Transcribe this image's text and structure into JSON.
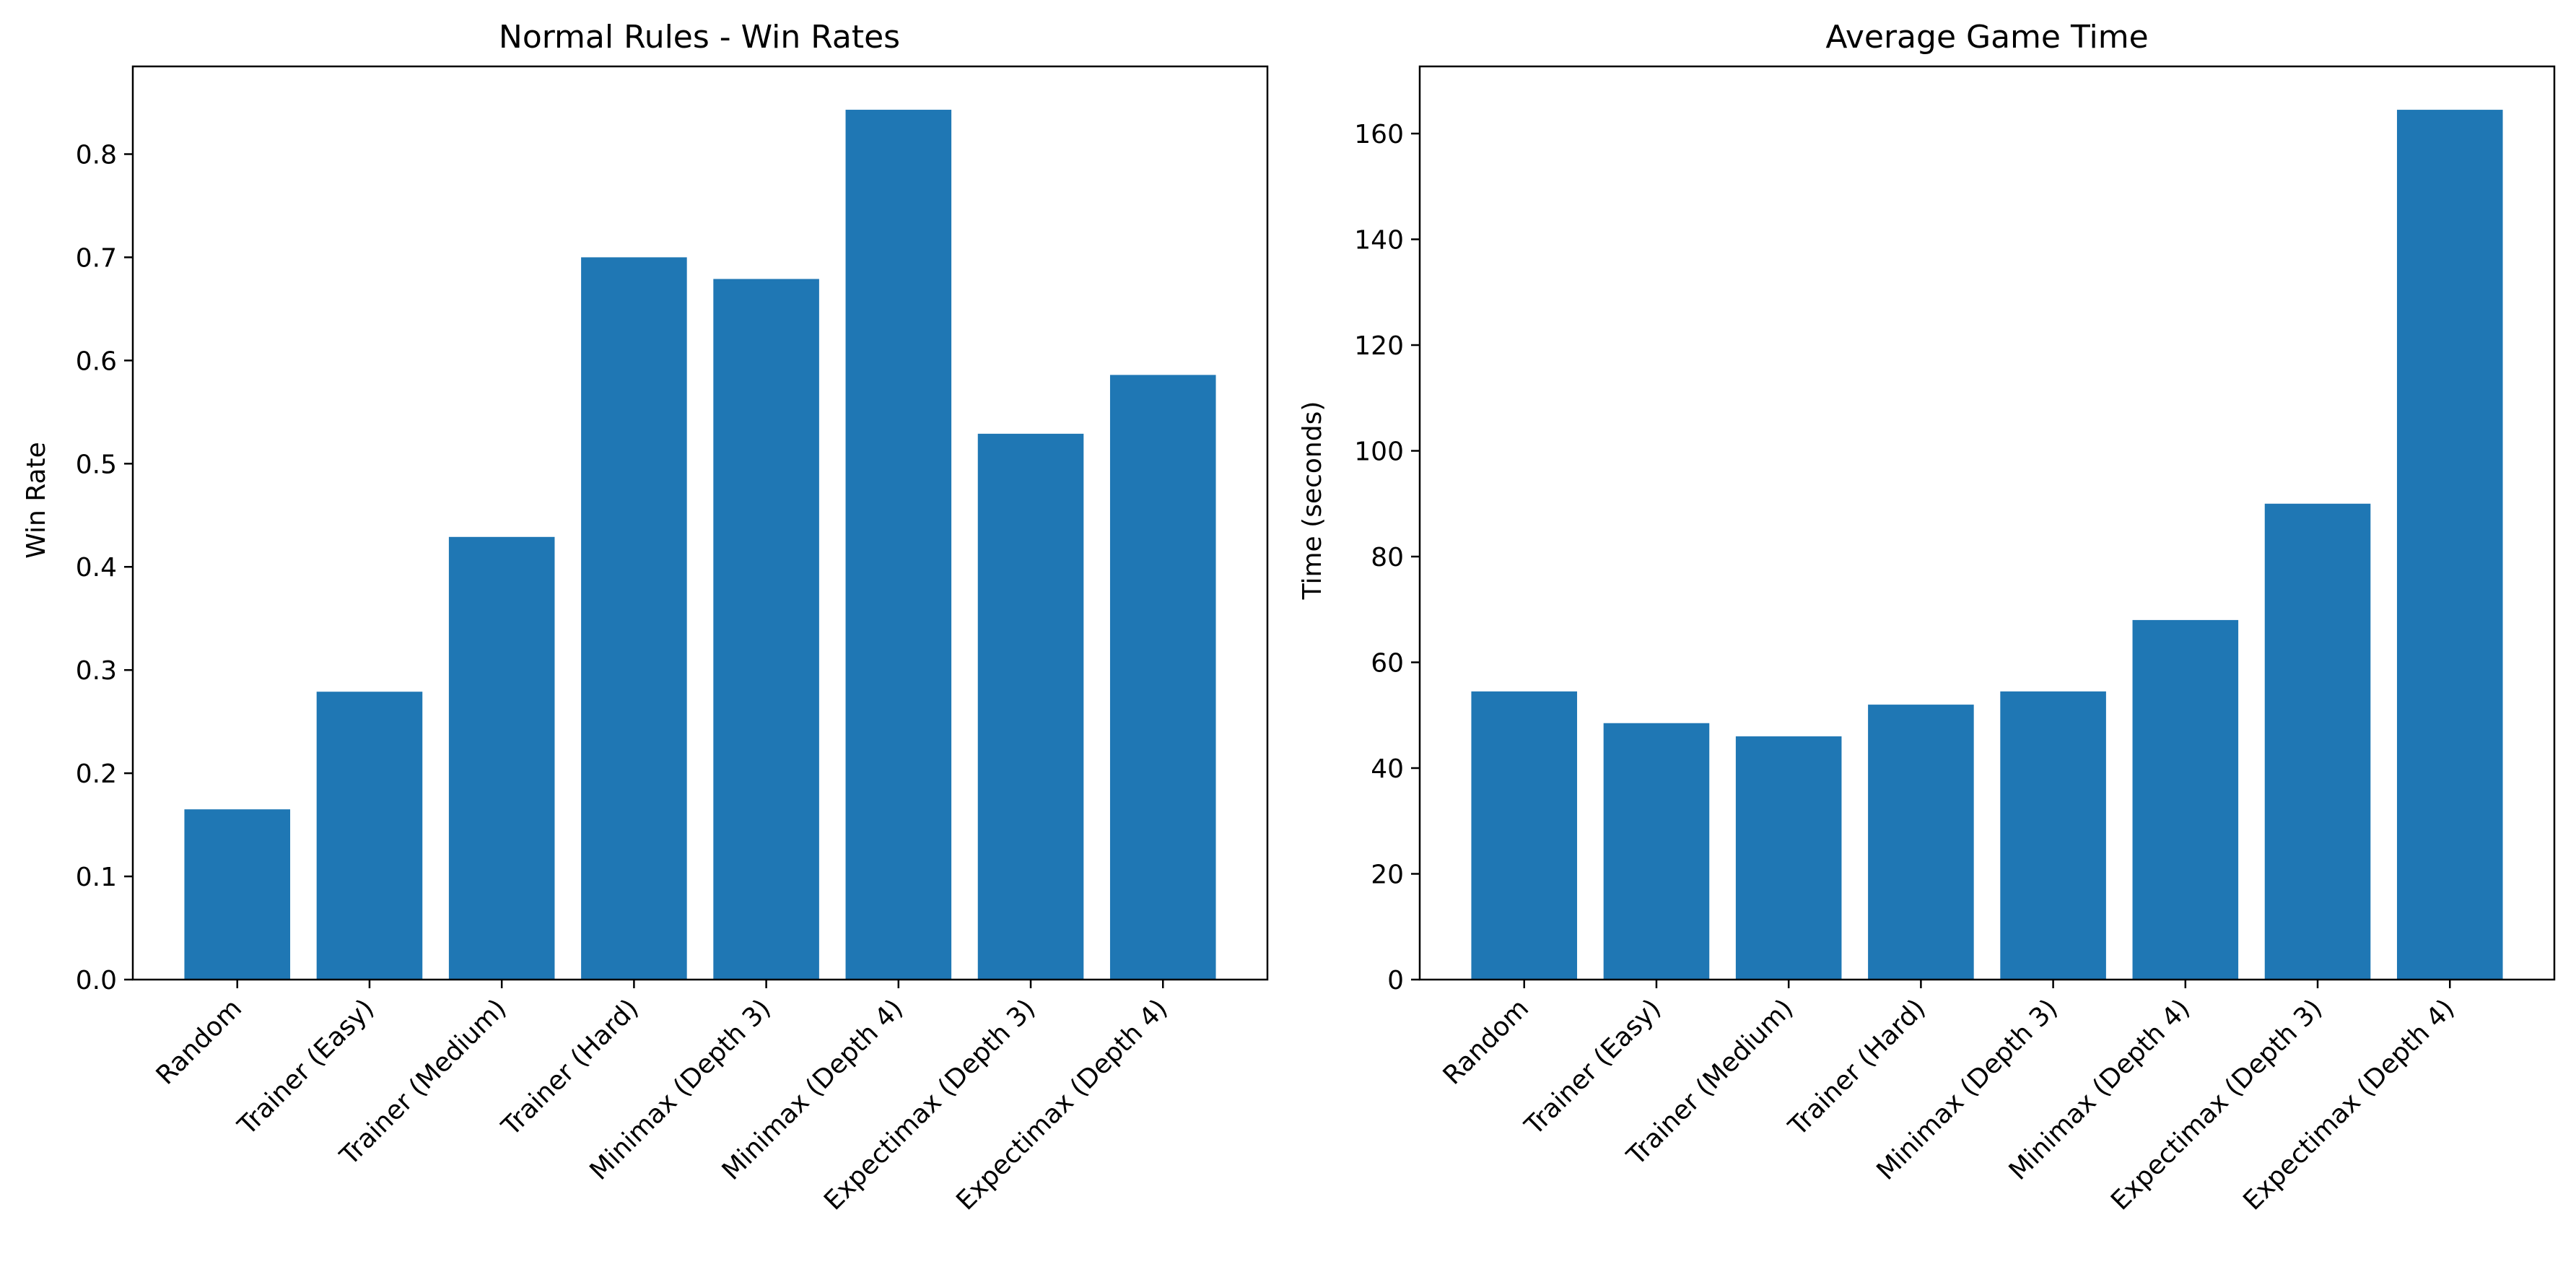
{
  "chart_data": [
    {
      "type": "bar",
      "title": "Normal Rules - Win Rates",
      "xlabel": "",
      "ylabel": "Win Rate",
      "categories": [
        "Random",
        "Trainer (Easy)",
        "Trainer (Medium)",
        "Trainer (Hard)",
        "Minimax (Depth 3)",
        "Minimax (Depth 4)",
        "Expectimax (Depth 3)",
        "Expectimax (Depth 4)"
      ],
      "values": [
        0.165,
        0.279,
        0.429,
        0.7,
        0.679,
        0.843,
        0.529,
        0.586
      ],
      "ylim": [
        0,
        0.885
      ],
      "yticks": [
        0.0,
        0.1,
        0.2,
        0.3,
        0.4,
        0.5,
        0.6,
        0.7,
        0.8
      ],
      "ytick_labels": [
        "0.0",
        "0.1",
        "0.2",
        "0.3",
        "0.4",
        "0.5",
        "0.6",
        "0.7",
        "0.8"
      ],
      "bar_color": "#1f77b4",
      "grid": false
    },
    {
      "type": "bar",
      "title": "Average Game Time",
      "xlabel": "",
      "ylabel": "Time (seconds)",
      "categories": [
        "Random",
        "Trainer (Easy)",
        "Trainer (Medium)",
        "Trainer (Hard)",
        "Minimax (Depth 3)",
        "Minimax (Depth 4)",
        "Expectimax (Depth 3)",
        "Expectimax (Depth 4)"
      ],
      "values": [
        54.5,
        48.5,
        46.0,
        52.0,
        54.5,
        68.0,
        90.0,
        164.5
      ],
      "ylim": [
        0,
        172.7
      ],
      "yticks": [
        0,
        20,
        40,
        60,
        80,
        100,
        120,
        140,
        160
      ],
      "ytick_labels": [
        "0",
        "20",
        "40",
        "60",
        "80",
        "100",
        "120",
        "140",
        "160"
      ],
      "bar_color": "#1f77b4",
      "grid": false
    }
  ]
}
